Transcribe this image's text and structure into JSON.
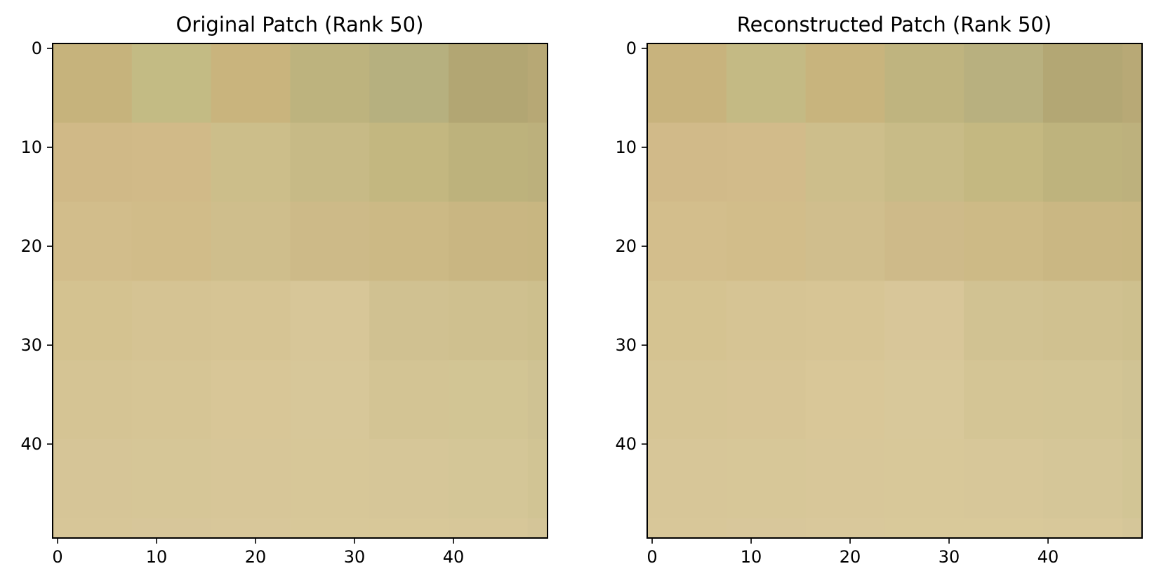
{
  "chart_data": [
    {
      "type": "heatmap",
      "title": "Original Patch (Rank 50)",
      "xlabel": "",
      "ylabel": "",
      "xlim": [
        -0.5,
        49.5
      ],
      "ylim": [
        49.5,
        -0.5
      ],
      "y_axis_inverted": true,
      "xticks": [
        0,
        10,
        20,
        30,
        40
      ],
      "yticks": [
        0,
        10,
        20,
        30,
        40
      ],
      "grid": false,
      "block_size": 8,
      "colors": [
        [
          "#c6b37c",
          "#c3bb84",
          "#c9b47d",
          "#bdb37e",
          "#b6b07f",
          "#b2a673",
          "#b7a875"
        ],
        [
          "#d0b987",
          "#d1ba88",
          "#ccbe8a",
          "#c7ba86",
          "#c3b780",
          "#bdb27c",
          "#bcb07c"
        ],
        [
          "#d2bd8b",
          "#d1bc89",
          "#cfbe8c",
          "#cdba88",
          "#ccb985",
          "#c9b682",
          "#c8b681"
        ],
        [
          "#d4c290",
          "#d5c393",
          "#d6c494",
          "#d7c698",
          "#d0c191",
          "#cfc08f",
          "#cdbf8d"
        ],
        [
          "#d5c494",
          "#d6c595",
          "#d8c697",
          "#d7c799",
          "#d3c494",
          "#d2c594",
          "#cfc293"
        ],
        [
          "#d6c597",
          "#d6c697",
          "#d7c698",
          "#d7c798",
          "#d6c698",
          "#d4c697",
          "#d1c494"
        ],
        [
          "#d7c698",
          "#d7c69a",
          "#d8c79a",
          "#d8c899",
          "#d8c899",
          "#d7c799",
          "#d4c598"
        ]
      ]
    },
    {
      "type": "heatmap",
      "title": "Reconstructed Patch (Rank 50)",
      "xlabel": "",
      "ylabel": "",
      "xlim": [
        -0.5,
        49.5
      ],
      "ylim": [
        49.5,
        -0.5
      ],
      "y_axis_inverted": true,
      "xticks": [
        0,
        10,
        20,
        30,
        40
      ],
      "yticks": [
        0,
        10,
        20,
        30,
        40
      ],
      "grid": false,
      "block_size": 8,
      "colors": [
        [
          "#c8b37d",
          "#c4ba84",
          "#c8b47d",
          "#bfb47f",
          "#b8b07f",
          "#b3a774",
          "#b8a976"
        ],
        [
          "#d1ba89",
          "#d2bb8a",
          "#cdbe8b",
          "#c8bb87",
          "#c4b881",
          "#beb37d",
          "#bdb17d"
        ],
        [
          "#d3be8c",
          "#d2bd8a",
          "#d0be8d",
          "#ceba89",
          "#cdba86",
          "#cab783",
          "#c9b782"
        ],
        [
          "#d5c391",
          "#d6c494",
          "#d7c595",
          "#d8c699",
          "#d1c292",
          "#d0c190",
          "#cec08e"
        ],
        [
          "#d6c595",
          "#d7c596",
          "#d9c798",
          "#d8c89a",
          "#d4c595",
          "#d3c595",
          "#d0c394"
        ],
        [
          "#d7c698",
          "#d7c798",
          "#d8c799",
          "#d8c899",
          "#d7c799",
          "#d5c698",
          "#d2c595"
        ],
        [
          "#d8c799",
          "#d8c79b",
          "#d9c89b",
          "#d9c99a",
          "#d9c99a",
          "#d8c89a",
          "#d5c699"
        ]
      ]
    }
  ]
}
